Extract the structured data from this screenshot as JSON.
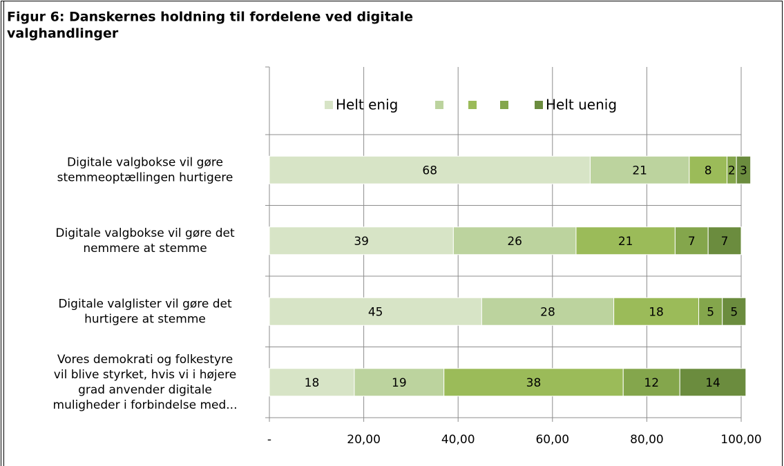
{
  "chart_data": {
    "type": "stacked-bar-horizontal",
    "title": [
      "Figur 6: Danskernes holdning til fordelene ved digitale",
      "valghandlinger"
    ],
    "categories": [
      [
        "Digitale valgbokse vil gøre",
        "stemmeoptællingen hurtigere"
      ],
      [
        "Digitale valgbokse vil gøre det",
        "nemmere at stemme"
      ],
      [
        "Digitale valglister vil gøre det",
        "hurtigere at stemme"
      ],
      [
        "Vores demokrati og folkestyre",
        "vil blive styrket, hvis vi i højere",
        "grad anvender digitale",
        "muligheder i forbindelse med..."
      ]
    ],
    "series": [
      {
        "name": "Helt enig",
        "color": "#d7e4c6",
        "values": [
          68,
          39,
          45,
          18
        ]
      },
      {
        "name": null,
        "color": "#bcd39e",
        "values": [
          21,
          26,
          28,
          19
        ]
      },
      {
        "name": null,
        "color": "#9bbb59",
        "values": [
          8,
          21,
          18,
          38
        ]
      },
      {
        "name": null,
        "color": "#84a64c",
        "values": [
          2,
          7,
          5,
          12
        ]
      },
      {
        "name": "Helt uenig",
        "color": "#6b8c3e",
        "values": [
          3,
          7,
          5,
          14
        ]
      }
    ],
    "xlim": [
      0,
      100
    ],
    "xticks": [
      {
        "value": 0,
        "label": "-"
      },
      {
        "value": 20,
        "label": "20,00"
      },
      {
        "value": 40,
        "label": "40,00"
      },
      {
        "value": 60,
        "label": "60,00"
      },
      {
        "value": 80,
        "label": "80,00"
      },
      {
        "value": 100,
        "label": "100,00"
      }
    ],
    "grid": true,
    "legend": "top"
  }
}
